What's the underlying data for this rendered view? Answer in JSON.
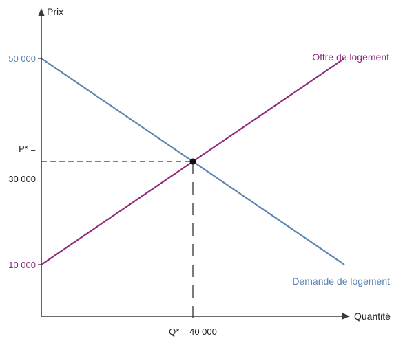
{
  "chart_data": {
    "type": "line",
    "title": "",
    "ylabel": "Prix",
    "xlabel": "Quantité",
    "xlim": [
      0,
      80000
    ],
    "ylim": [
      0,
      60000
    ],
    "grid": false,
    "series": [
      {
        "name": "Offre de logement",
        "color": "#8e2a7e",
        "x": [
          0,
          80000
        ],
        "values": [
          10000,
          50000
        ]
      },
      {
        "name": "Demande de logement",
        "color": "#5b84b0",
        "x": [
          0,
          80000
        ],
        "values": [
          50000,
          10000
        ]
      }
    ],
    "equilibrium": {
      "x": 40000,
      "y": 30000,
      "x_label": "Q* = 40 000",
      "y_label_line1": "P* =",
      "y_label_line2": "30 000"
    },
    "y_ticks": [
      {
        "value": 50000,
        "label": "50 000",
        "color": "#5b84b0"
      },
      {
        "value": 10000,
        "label": "10 000",
        "color": "#8e2a7e"
      }
    ],
    "colors": {
      "axis": "#3a3a3a",
      "text": "#222222",
      "dash": "#333333"
    }
  }
}
